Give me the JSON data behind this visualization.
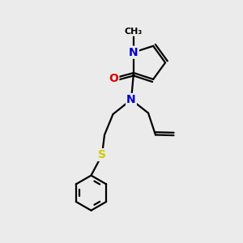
{
  "bg_color": "#ebebeb",
  "atom_colors": {
    "N": "#0000cc",
    "O": "#dd0000",
    "S": "#cccc00",
    "C": "#000000"
  },
  "bond_color": "#000000",
  "bond_width": 1.6,
  "font_size_atom": 10
}
